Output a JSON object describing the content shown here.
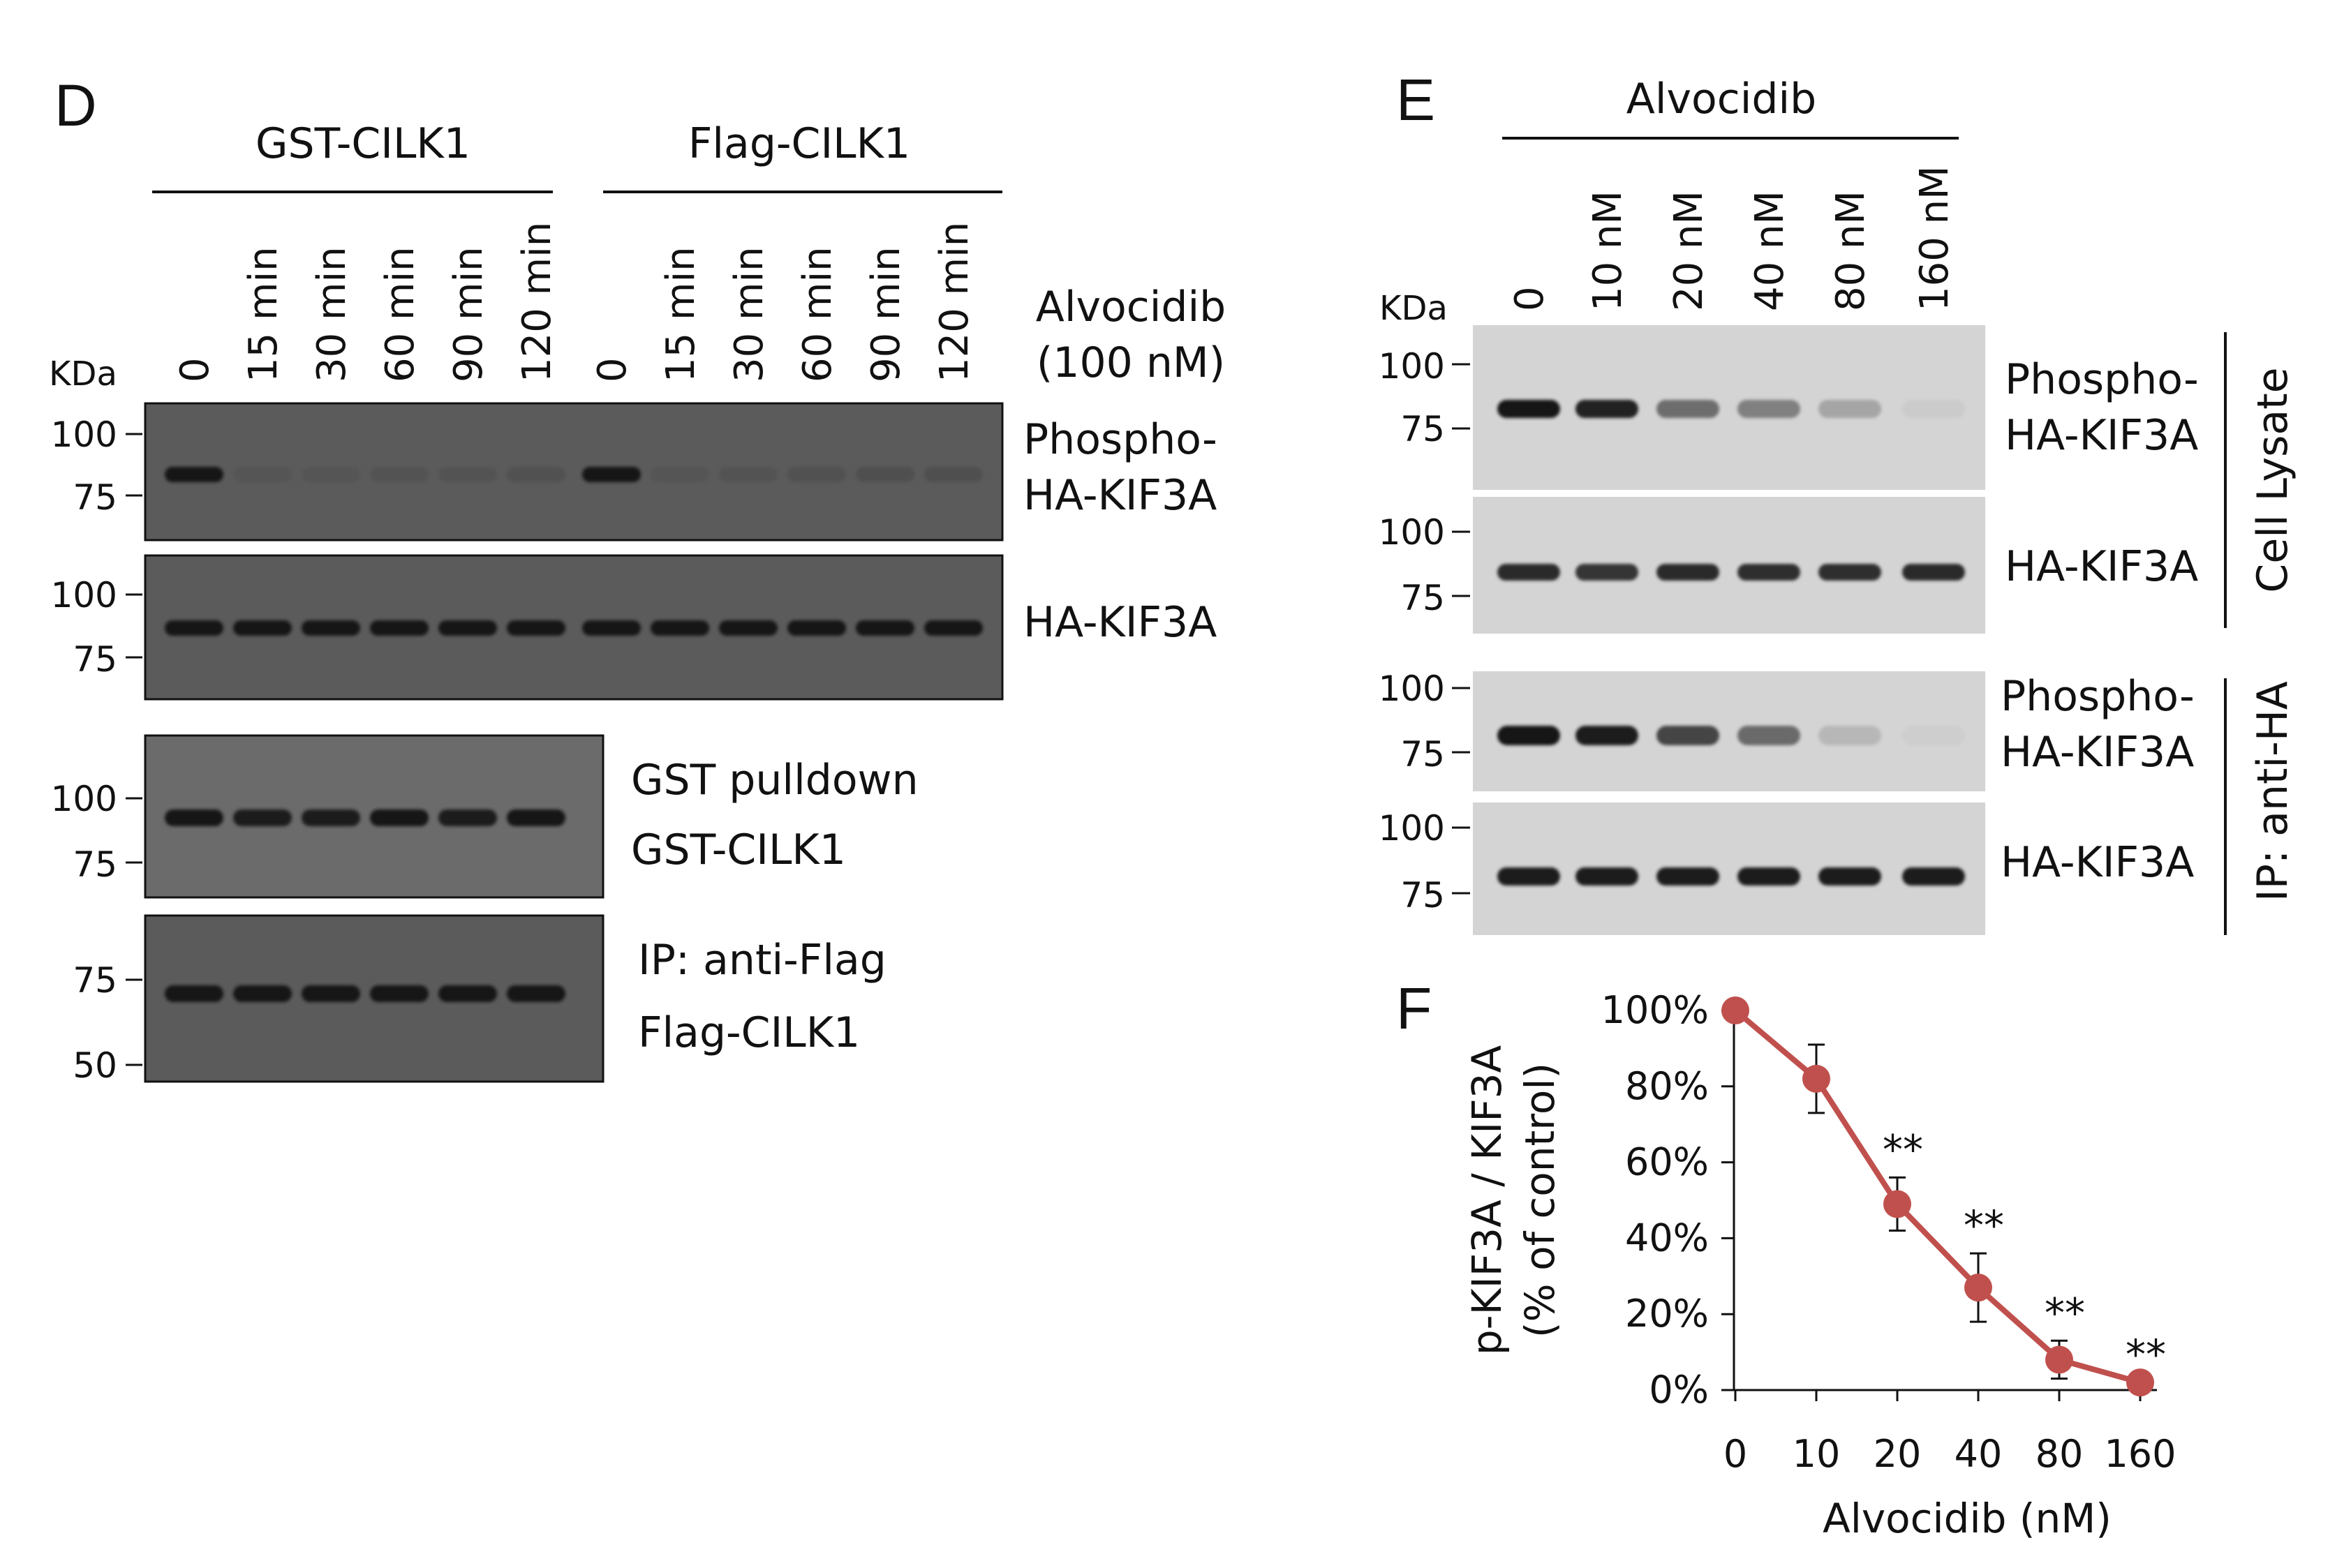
{
  "panel_d": {
    "letter": "D",
    "group1": "GST-CILK1",
    "group2": "Flag-CILK1",
    "lanes": [
      "0",
      "15 min",
      "30 min",
      "60 min",
      "90 min",
      "120 min",
      "0",
      "15 min",
      "30 min",
      "60 min",
      "90 min",
      "120 min"
    ],
    "treatment_line1": "Alvocidib",
    "treatment_line2": "(100 nM)",
    "kda_label": "KDa",
    "blot1": {
      "markers": [
        "100",
        "75"
      ],
      "label_line1": "Phospho-",
      "label_line2": "HA-KIF3A"
    },
    "blot2": {
      "markers": [
        "100",
        "75"
      ],
      "label": "HA-KIF3A"
    },
    "blot3": {
      "markers": [
        "100",
        "75"
      ],
      "label_line1": "GST pulldown",
      "label_line2": "GST-CILK1"
    },
    "blot4": {
      "markers": [
        "75",
        "50"
      ],
      "label_line1": "IP: anti-Flag",
      "label_line2": "Flag-CILK1"
    },
    "band_intensity": {
      "phospho": [
        1.0,
        0.06,
        0.05,
        0.08,
        0.09,
        0.1,
        1.0,
        0.06,
        0.08,
        0.1,
        0.11,
        0.12
      ],
      "total": [
        0.9,
        0.92,
        0.92,
        0.93,
        0.92,
        0.9,
        0.92,
        0.93,
        0.94,
        0.94,
        0.94,
        0.95
      ],
      "gst": [
        0.95,
        0.85,
        0.9,
        1.0,
        0.9,
        0.92
      ],
      "flag": [
        0.95,
        0.92,
        0.95,
        0.95,
        0.9,
        0.95
      ]
    }
  },
  "panel_e": {
    "letter": "E",
    "drug": "Alvocidib",
    "lanes": [
      "0",
      "10 nM",
      "20 nM",
      "40 nM",
      "80 nM",
      "160 nM"
    ],
    "kda_label": "KDa",
    "blot1": {
      "markers": [
        "100",
        "75"
      ],
      "label_line1": "Phospho-",
      "label_line2": "HA-KIF3A"
    },
    "blot2": {
      "markers": [
        "100",
        "75"
      ],
      "label": "HA-KIF3A"
    },
    "blot3": {
      "markers": [
        "100",
        "75"
      ],
      "label_line1": "Phospho-",
      "label_line2": "HA-KIF3A"
    },
    "blot4": {
      "markers": [
        "100",
        "75"
      ],
      "label": "HA-KIF3A"
    },
    "group_cell_lysate": "Cell Lysate",
    "group_ip": "IP: anti-HA",
    "band_intensity": {
      "lysate_phospho": [
        1.0,
        0.95,
        0.55,
        0.45,
        0.25,
        0.05
      ],
      "lysate_total": [
        0.9,
        0.85,
        0.9,
        0.88,
        0.88,
        0.9
      ],
      "ip_phospho": [
        1.0,
        0.95,
        0.75,
        0.55,
        0.15,
        0.03
      ],
      "ip_total": [
        0.95,
        0.95,
        0.95,
        0.95,
        0.95,
        0.95
      ]
    }
  },
  "panel_f": {
    "letter": "F",
    "colors": {
      "series": "#c0504d"
    }
  },
  "chart_data": {
    "type": "line",
    "title": "",
    "xlabel": "Alvocidib (nM)",
    "ylabel_line1": "p-KIF3A / KIF3A",
    "ylabel_line2": "(% of control)",
    "categories": [
      "0",
      "10",
      "20",
      "40",
      "80",
      "160"
    ],
    "series": [
      {
        "name": "p-KIF3A / KIF3A",
        "values": [
          100,
          82,
          49,
          27,
          8,
          2
        ],
        "errors": [
          0,
          9,
          7,
          9,
          5,
          0
        ],
        "significance": [
          "",
          "",
          "**",
          "**",
          "**",
          "**"
        ]
      }
    ],
    "ylim": [
      0,
      100
    ],
    "yticks": [
      "0%",
      "20%",
      "40%",
      "60%",
      "80%",
      "100%"
    ],
    "ytick_values": [
      0,
      20,
      40,
      60,
      80,
      100
    ]
  }
}
